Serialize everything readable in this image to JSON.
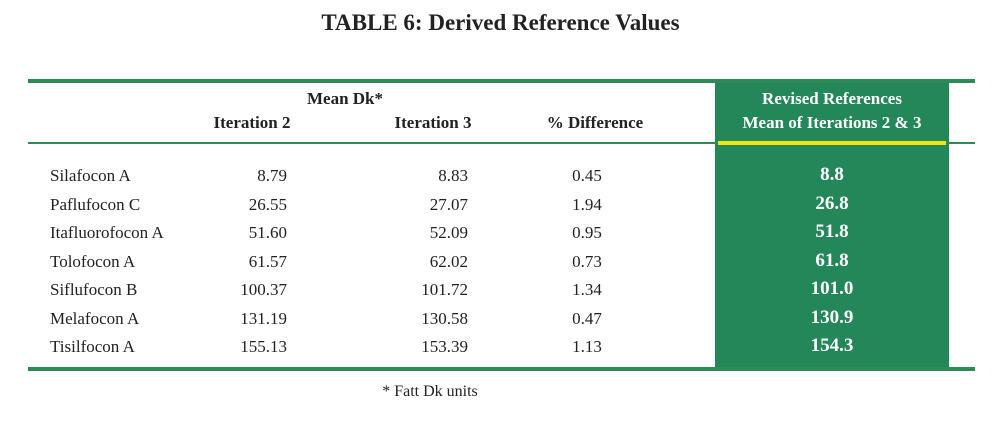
{
  "title": "TABLE 6: Derived Reference Values",
  "table": {
    "group_header": "Mean Dk*",
    "columns": [
      "Iteration 2",
      "Iteration 3",
      "% Difference"
    ],
    "revised_header": [
      "Revised References",
      "Mean of Iterations 2 & 3"
    ],
    "rows": [
      [
        "Silafocon A",
        "8.79",
        "8.83",
        "0.45",
        "8.8"
      ],
      [
        "Paflufocon C",
        "26.55",
        "27.07",
        "1.94",
        "26.8"
      ],
      [
        "Itafluorofocon A",
        "51.60",
        "52.09",
        "0.95",
        "51.8"
      ],
      [
        "Tolofocon A",
        "61.57",
        "62.02",
        "0.73",
        "61.8"
      ],
      [
        "Siflufocon B",
        "100.37",
        "101.72",
        "1.34",
        "101.0"
      ],
      [
        "Melafocon A",
        "131.19",
        "130.58",
        "0.47",
        "130.9"
      ],
      [
        "Tisilfocon A",
        "155.13",
        "153.39",
        "1.13",
        "154.3"
      ]
    ]
  },
  "footnote": "* Fatt Dk units"
}
